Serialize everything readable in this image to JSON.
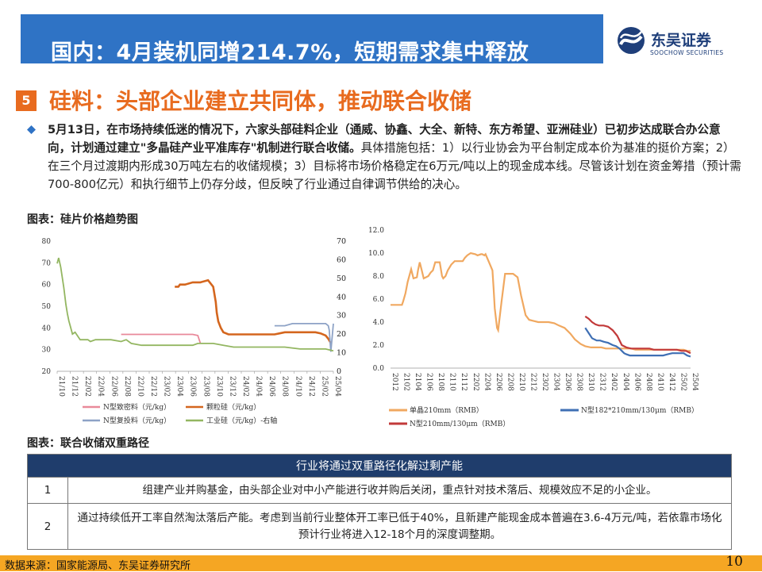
{
  "header": {
    "title": "国内：4月装机同增214.7%，短期需求集中释放",
    "logo_name": "东吴证券",
    "logo_sub": "SOOCHOW SECURITIES"
  },
  "section": {
    "number": "5",
    "title": "硅料：头部企业建立共同体，推动联合收储"
  },
  "paragraph": {
    "bold": "5月13日，在市场持续低迷的情况下，六家头部硅料企业（通威、协鑫、大全、新特、东方希望、亚洲硅业）已初步达成联合办公意向，计划通过建立\"多晶硅产业平准库存\"机制进行联合收储。",
    "normal": "具体措施包括：1）以行业协会为平台制定成本价为基准的挺价方案；2）在三个月过渡期内形成30万吨左右的收储规模；3）目标将市场价格稳定在6万元/吨以上的现金成本线。尽管该计划在资金筹措（预计需700-800亿元）和执行细节上仍存分歧，但反映了行业通过自律调节供给的决心。"
  },
  "caption1": "图表：硅片价格趋势图",
  "caption2": "图表：联合收储双重路径",
  "chart_data": [
    {
      "type": "line",
      "x_ticks": [
        "21/10",
        "21/12",
        "22/02",
        "22/04",
        "22/06",
        "22/08",
        "22/10",
        "22/12",
        "23/02",
        "23/04",
        "23/06",
        "23/08",
        "23/10",
        "23/12",
        "24/02",
        "24/04",
        "24/06",
        "24/08",
        "24/10",
        "24/12",
        "25/02",
        "25/04"
      ],
      "ylim_left": [
        20,
        80
      ],
      "ylim_right": [
        0,
        70
      ],
      "y_ticks_left": [
        "80",
        "70",
        "60",
        "50",
        "40",
        "30",
        "20"
      ],
      "y_ticks_right": [
        "70",
        "60",
        "50",
        "40",
        "30",
        "20",
        "10",
        "0"
      ],
      "series": [
        {
          "name": "N型致密料（元/kg）",
          "color": "#e9899a",
          "axis": "left",
          "x": [
            23.0,
            23.3,
            23.6,
            23.9,
            24.2,
            24.4,
            24.5,
            24.55
          ],
          "y": [
            37,
            37,
            37,
            37,
            37,
            37,
            36.5,
            33
          ]
        },
        {
          "name": "颗粒硅（元/kg）",
          "color": "#d4661e",
          "axis": "left",
          "x": [
            24.05,
            24.12,
            24.15,
            24.25,
            24.4,
            24.55,
            24.7,
            24.8,
            24.85,
            24.87,
            24.9,
            24.95,
            25.0,
            25.1,
            25.2,
            25.25,
            25.3,
            25.35,
            25.5,
            25.6,
            25.75,
            25.8,
            25.9,
            26.0,
            26.1,
            26.2,
            26.3,
            26.4,
            26.5,
            26.6,
            26.7,
            26.8,
            26.9,
            27.0,
            27.05,
            27.1
          ],
          "y": [
            59,
            59,
            60,
            60,
            61,
            61,
            62,
            59,
            52,
            47,
            43,
            40,
            38,
            37,
            37,
            37,
            37,
            37,
            37,
            37,
            37,
            37,
            37,
            37,
            37.5,
            38,
            38,
            38,
            38,
            38,
            38,
            38,
            37.5,
            36.5,
            35,
            33
          ]
        },
        {
          "name": "N型复投料（元/kg）",
          "color": "#8da2c6",
          "axis": "left",
          "x": [
            26.0,
            26.2,
            26.35,
            26.5,
            26.7,
            26.9,
            27.0,
            27.05,
            27.07,
            27.1,
            27.15
          ],
          "y": [
            41,
            41,
            42,
            42,
            42,
            42,
            42,
            41,
            39,
            29,
            42
          ]
        },
        {
          "name": "工业硅（元/kg）-右轴",
          "color": "#93b661",
          "axis": "right",
          "x": [
            21.75,
            21.78,
            21.82,
            21.88,
            21.92,
            21.95,
            21.98,
            22.0,
            22.05,
            22.1,
            22.2,
            22.3,
            22.35,
            22.4,
            22.5,
            22.6,
            22.8,
            23.0,
            23.1,
            23.2,
            23.4,
            23.6,
            23.8,
            24.0,
            24.2,
            24.4,
            24.5,
            24.6,
            24.8,
            25.0,
            25.2,
            25.4,
            25.6,
            25.8,
            26.0,
            26.2,
            26.5,
            26.8,
            27.0,
            27.15
          ],
          "y": [
            58,
            61,
            56,
            45,
            36,
            31,
            27,
            25,
            20,
            21,
            17,
            17,
            17,
            16,
            17,
            17,
            17,
            16,
            17,
            15,
            14,
            14,
            14,
            14,
            14,
            14,
            15,
            15,
            15,
            14,
            13,
            13,
            13,
            13,
            13,
            13,
            12,
            12,
            12,
            11
          ]
        }
      ]
    },
    {
      "type": "line",
      "x_ticks": [
        "2012",
        "2102",
        "2104",
        "2106",
        "2108",
        "2110",
        "2112",
        "2202",
        "2204",
        "2206",
        "2208",
        "2210",
        "2212",
        "2302",
        "2304",
        "2306",
        "2308",
        "2310",
        "2312",
        "2402",
        "2404",
        "2406",
        "2408",
        "2410",
        "2412",
        "2502",
        "2504"
      ],
      "ylim": [
        0,
        12
      ],
      "y_ticks": [
        "12.0",
        "10.0",
        "8.0",
        "6.0",
        "4.0",
        "2.0",
        "0.0"
      ],
      "series": [
        {
          "name": "单晶210mm（RMB）",
          "color": "#f0a860",
          "x": [
            0,
            0.2,
            0.5,
            1.0,
            1.1,
            1.3,
            1.5,
            1.8,
            2.0,
            2.3,
            2.4,
            2.55,
            2.7,
            2.9,
            3.1,
            3.3,
            3.5,
            3.7,
            3.9,
            4.1,
            4.3,
            4.5,
            4.6,
            4.8,
            5.0,
            5.3,
            5.6,
            6.0,
            6.3,
            6.5,
            6.7,
            7.0,
            7.4,
            7.6,
            7.9,
            8.0,
            8.2,
            8.3,
            8.6,
            8.9,
            9.0,
            9.1,
            9.3,
            9.4,
            9.7,
            10.0,
            10.3,
            10.7,
            11.1,
            11.4,
            11.8,
            12.1,
            12.5,
            12.9,
            13.4,
            13.8,
            14.3,
            14.7,
            15.2,
            15.7,
            16.1,
            16.6,
            17.0,
            17.5,
            17.9,
            18.4,
            18.8,
            19.2,
            19.6,
            20.0,
            20.3,
            20.6,
            21.0,
            21.4,
            21.8,
            22.2,
            22.6,
            23.0,
            23.4,
            23.8,
            24.2,
            24.6,
            25.0,
            25.3,
            25.6,
            25.9,
            26.2
          ],
          "y": [
            5.5,
            5.5,
            5.5,
            5.5,
            5.8,
            6.5,
            7.5,
            8.6,
            7.8,
            7.9,
            8.5,
            9.2,
            8.6,
            7.8,
            7.9,
            8.0,
            8.3,
            8.5,
            9.2,
            9.2,
            9.2,
            8.0,
            7.8,
            8.0,
            8.5,
            9.0,
            9.3,
            9.3,
            9.3,
            9.6,
            9.8,
            10.0,
            9.9,
            9.8,
            9.9,
            9.9,
            9.8,
            9.9,
            9.2,
            8.5,
            7.0,
            5.2,
            3.5,
            3.3,
            5.8,
            8.2,
            8.2,
            8.2,
            7.9,
            6.3,
            4.6,
            4.2,
            4.1,
            4.0,
            4.0,
            4.0,
            3.9,
            3.7,
            3.5,
            3.0,
            2.5,
            2.1,
            1.9,
            1.8,
            1.8,
            1.8,
            1.7,
            1.7,
            1.7,
            1.7,
            1.7,
            1.7,
            1.7,
            1.6,
            1.6,
            1.6,
            1.6,
            1.6,
            1.6,
            1.6,
            1.6,
            1.6,
            1.6,
            1.6,
            1.6,
            1.5,
            1.5
          ]
        },
        {
          "name": "N型182*210mm/130μm（RMB）",
          "color": "#3f6fb4",
          "x": [
            17.0,
            17.2,
            17.4,
            17.6,
            17.8,
            18.0,
            18.3,
            18.6,
            19.0,
            19.4,
            19.7,
            20.0,
            20.2,
            20.4,
            20.6,
            20.9,
            21.2,
            21.5,
            21.8,
            22.2,
            22.6,
            23.0,
            23.4,
            23.8,
            24.2,
            24.6,
            25.0,
            25.3,
            25.6,
            25.9,
            26.2
          ],
          "y": [
            3.5,
            3.2,
            2.9,
            2.6,
            2.5,
            2.4,
            2.4,
            2.3,
            2.2,
            2.0,
            1.9,
            1.7,
            1.5,
            1.3,
            1.2,
            1.1,
            1.1,
            1.1,
            1.1,
            1.1,
            1.1,
            1.1,
            1.1,
            1.1,
            1.2,
            1.3,
            1.3,
            1.3,
            1.3,
            1.1,
            1.0
          ]
        },
        {
          "name": "N型210mm/130μm（RMB）",
          "color": "#c23a3a",
          "x": [
            17.0,
            17.3,
            17.6,
            17.9,
            18.2,
            18.6,
            19.0,
            19.4,
            19.8,
            20.2,
            20.6,
            21.0,
            21.4,
            21.8,
            22.2,
            22.6,
            23.0,
            23.4,
            23.8,
            24.2,
            24.6,
            25.0,
            25.4,
            25.8,
            26.2
          ],
          "y": [
            4.5,
            4.3,
            4.0,
            3.8,
            3.7,
            3.7,
            3.6,
            3.3,
            2.8,
            2.0,
            1.8,
            1.7,
            1.7,
            1.7,
            1.7,
            1.7,
            1.6,
            1.6,
            1.6,
            1.6,
            1.6,
            1.6,
            1.5,
            1.5,
            1.3
          ]
        }
      ]
    }
  ],
  "table": {
    "header": "行业将通过双重路径化解过剩产能",
    "rows": [
      {
        "num": "1",
        "text": "组建产业并购基金，由头部企业对中小产能进行收并购后关闭，重点针对技术落后、规模效应不足的小企业。"
      },
      {
        "num": "2",
        "text": "通过持续低开工率自然淘汰落后产能。考虑到当前行业整体开工率已低于40%，且新建产能现金成本普遍在3.6-4万元/吨，若依靠市场化预计行业将进入12-18个月的深度调整期。"
      }
    ]
  },
  "footer": {
    "source": "数据来源：国家能源局、东吴证券研究所",
    "page": "10"
  },
  "colors": {
    "header_bg": "#2f73c5",
    "accent": "#e86b1f",
    "table_header": "#1f3d6c",
    "footer_bg": "#f5a623"
  }
}
